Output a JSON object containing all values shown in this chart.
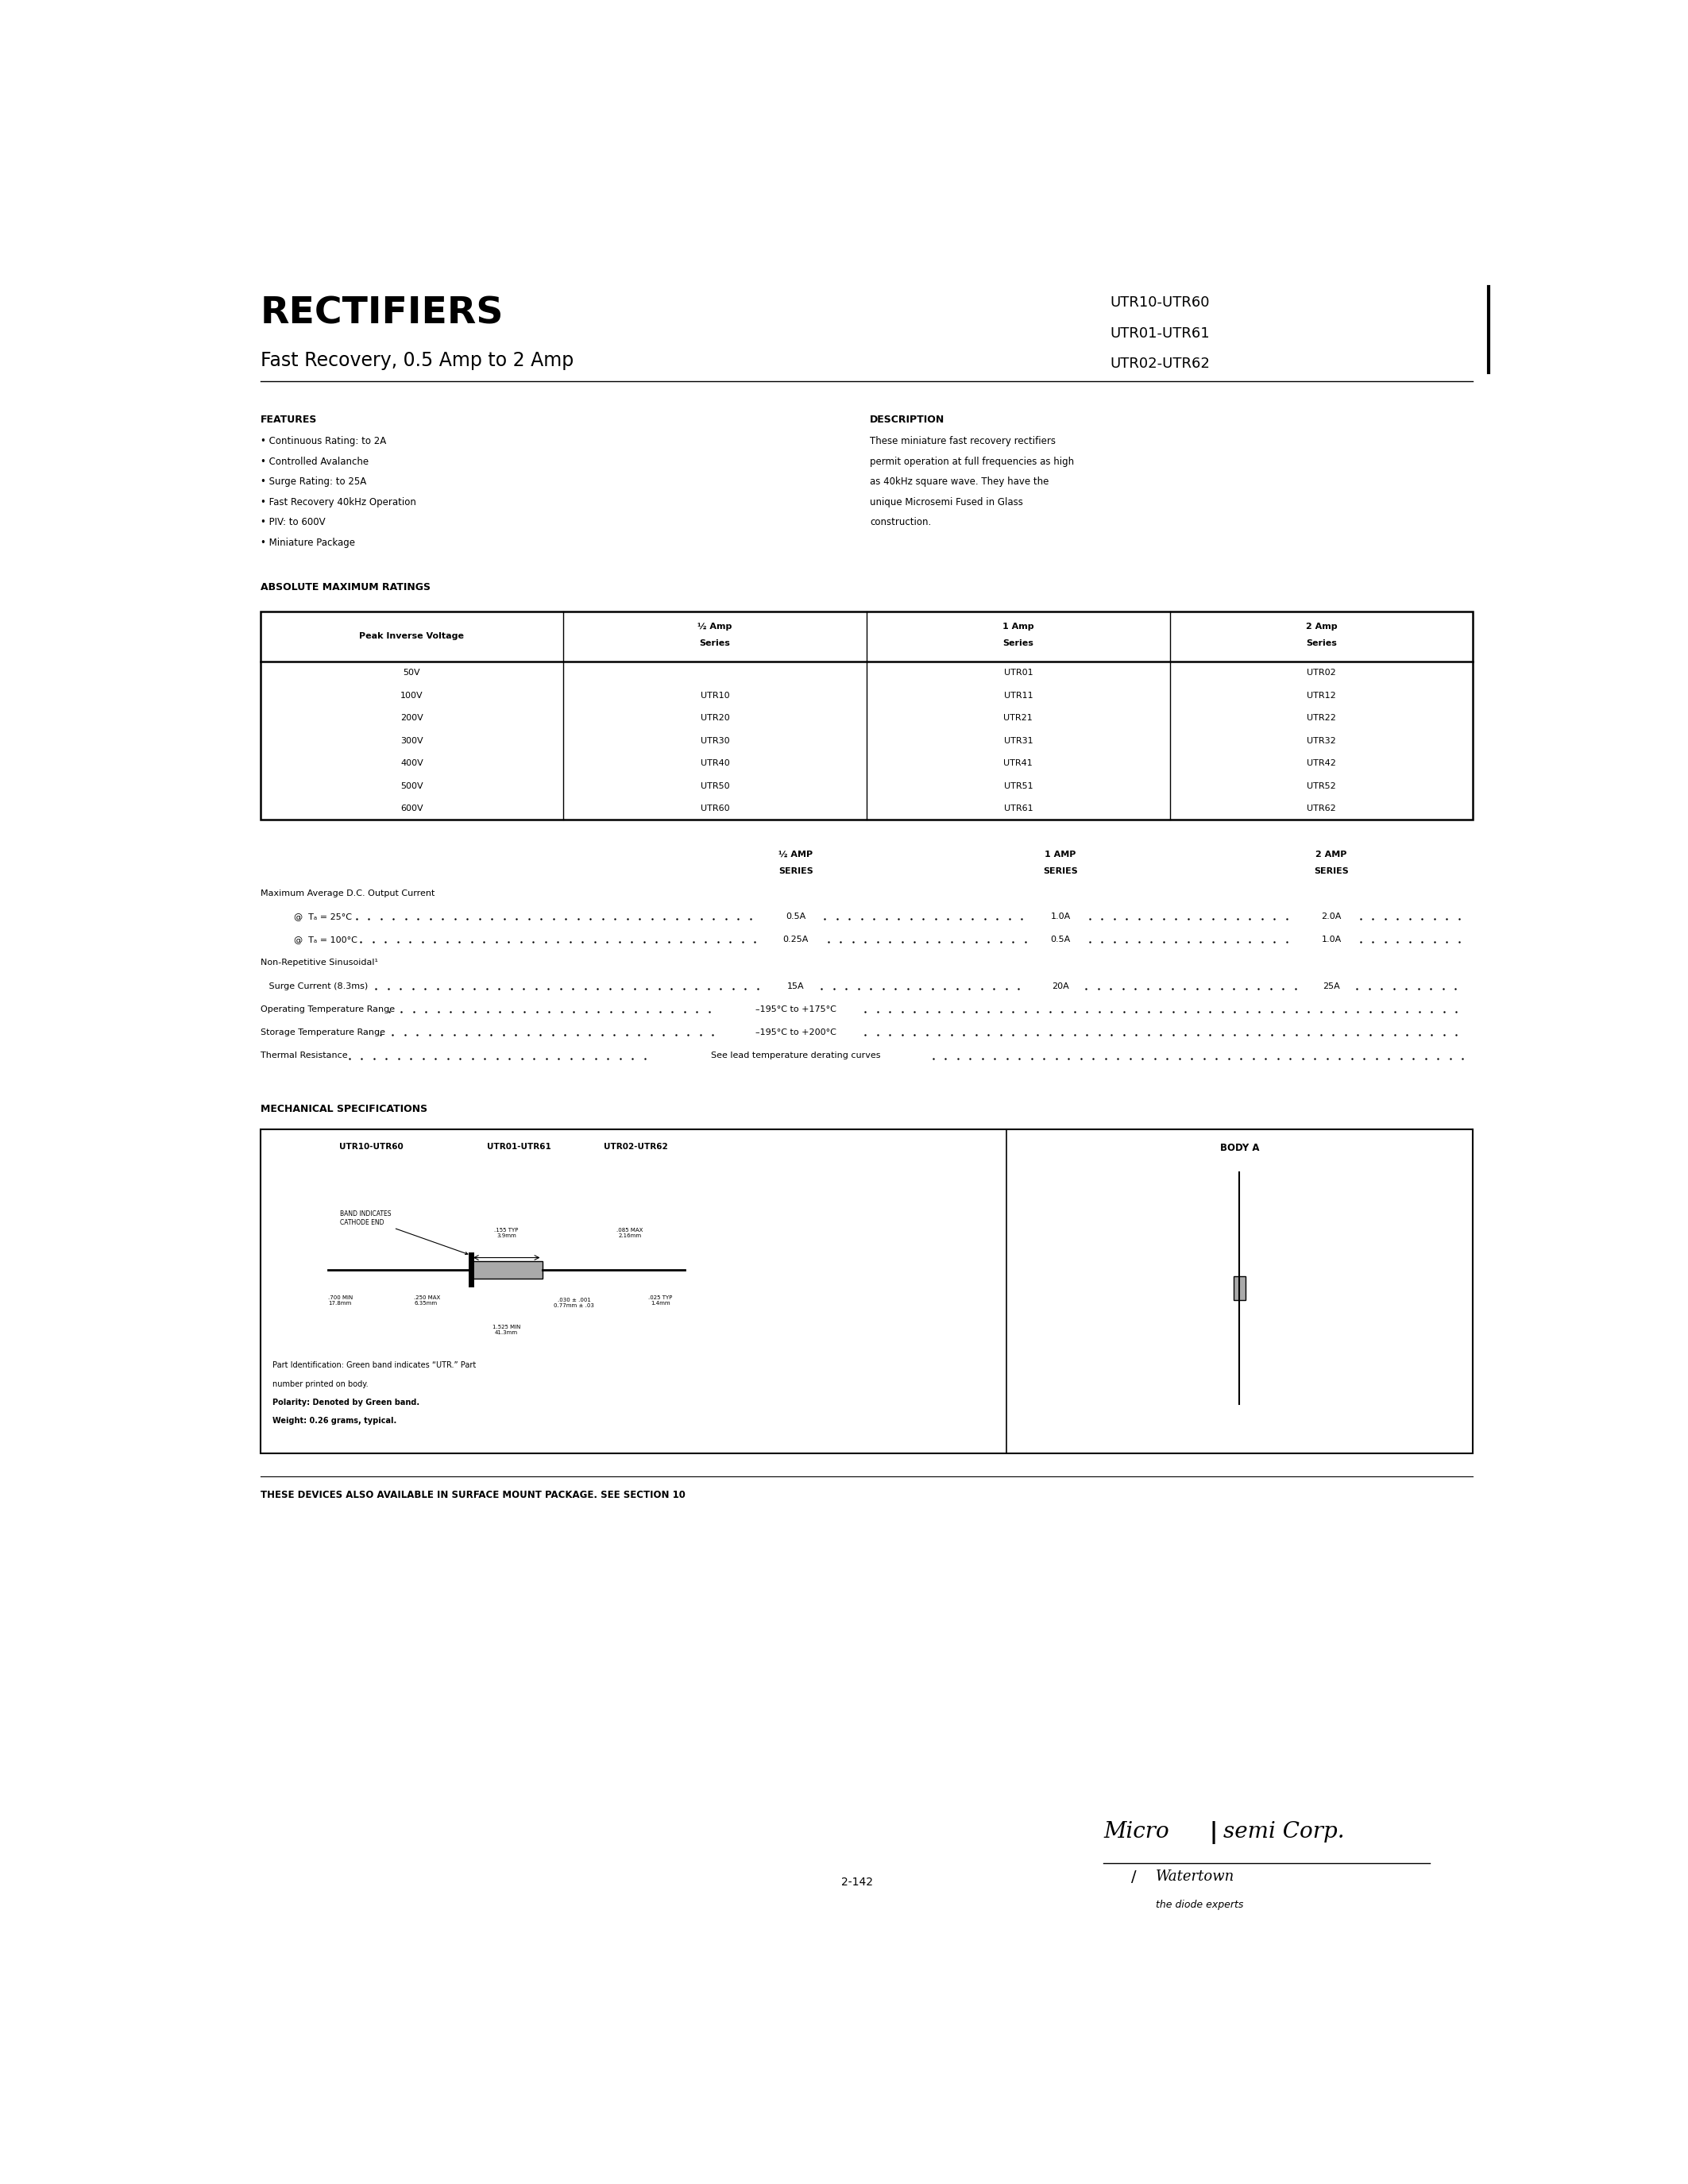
{
  "title": "RECTIFIERS",
  "subtitle": "Fast Recovery, 0.5 Amp to 2 Amp",
  "part_numbers_right": [
    "UTR10-UTR60",
    "UTR01-UTR61",
    "UTR02-UTR62"
  ],
  "features_title": "FEATURES",
  "features": [
    "Continuous Rating: to 2A",
    "Controlled Avalanche",
    "Surge Rating: to 25A",
    "Fast Recovery 40kHz Operation",
    "PIV: to 600V",
    "Miniature Package"
  ],
  "description_title": "DESCRIPTION",
  "description_lines": [
    "These miniature fast recovery rectifiers",
    "permit operation at full frequencies as high",
    "as 40kHz square wave. They have the",
    "unique Microsemi Fused in Glass",
    "construction."
  ],
  "abs_max_title": "ABSOLUTE MAXIMUM RATINGS",
  "table_col_headers": [
    "Peak Inverse Voltage",
    "½ Amp\nSeries",
    "1 Amp\nSeries",
    "2 Amp\nSeries"
  ],
  "table_rows": [
    [
      "50V",
      "",
      "UTR01",
      "UTR02"
    ],
    [
      "100V",
      "UTR10",
      "UTR11",
      "UTR12"
    ],
    [
      "200V",
      "UTR20",
      "UTR21",
      "UTR22"
    ],
    [
      "300V",
      "UTR30",
      "UTR31",
      "UTR32"
    ],
    [
      "400V",
      "UTR40",
      "UTR41",
      "UTR42"
    ],
    [
      "500V",
      "UTR50",
      "UTR51",
      "UTR52"
    ],
    [
      "600V",
      "UTR60",
      "UTR61",
      "UTR62"
    ]
  ],
  "ratings_col_headers": [
    "½ AMP\nSERIES",
    "1 AMP\nSERIES",
    "2 AMP\nSERIES"
  ],
  "ratings_rows": [
    {
      "label": "Maximum Average D.C. Output Current",
      "indent": false,
      "v1": "",
      "v2": "",
      "v3": ""
    },
    {
      "label": "@  Tₐ = 25°C",
      "indent": true,
      "v1": "0.5A",
      "v2": "1.0A",
      "v3": "2.0A"
    },
    {
      "label": "@  Tₐ = 100°C",
      "indent": true,
      "v1": "0.25A",
      "v2": "0.5A",
      "v3": "1.0A"
    },
    {
      "label": "Non-Repetitive Sinusoidal¹",
      "indent": false,
      "v1": "",
      "v2": "",
      "v3": ""
    },
    {
      "label": "   Surge Current (8.3ms)",
      "indent": false,
      "v1": "15A",
      "v2": "20A",
      "v3": "25A"
    },
    {
      "label": "Operating Temperature Range",
      "indent": false,
      "v1": "–195°C to +175°C",
      "v2": "",
      "v3": ""
    },
    {
      "label": "Storage Temperature Range",
      "indent": false,
      "v1": "–195°C to +200°C",
      "v2": "",
      "v3": ""
    },
    {
      "label": "Thermal Resistance",
      "indent": false,
      "v1": "See lead temperature derating curves",
      "v2": "",
      "v3": ""
    }
  ],
  "mech_title": "MECHANICAL SPECIFICATIONS",
  "mech_left_headers": [
    "UTR10-UTR60",
    "UTR01-UTR61",
    "UTR02-UTR62"
  ],
  "mech_right_header": "BODY A",
  "part_id_lines": [
    "Part Identification: Green band indicates “UTR.” Part",
    "number printed on body.",
    "Polarity: Denoted by Green band.",
    "Weight: 0.26 grams, typical."
  ],
  "part_id_bold": [
    false,
    false,
    true,
    true
  ],
  "footer_text": "THESE DEVICES ALSO AVAILABLE IN SURFACE MOUNT PACKAGE. SEE SECTION 10",
  "page_number": "2-142",
  "bg_color": "#ffffff",
  "text_color": "#000000"
}
